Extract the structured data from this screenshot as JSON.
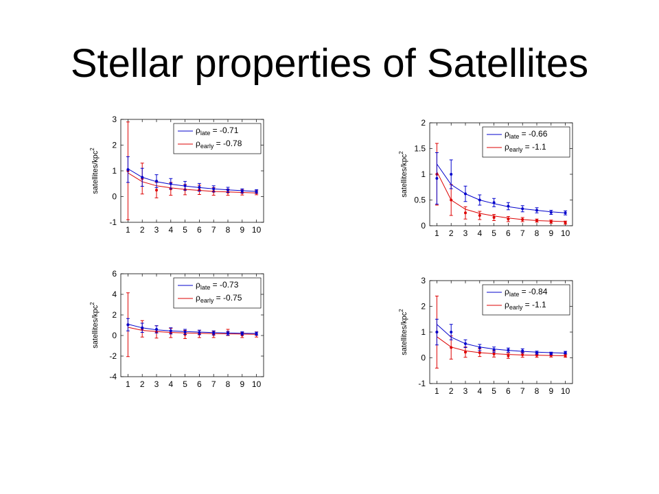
{
  "slide": {
    "title": "Stellar properties of Satellites"
  },
  "colors": {
    "late": "#0000cc",
    "early": "#dd0000",
    "axis": "#000000",
    "background": "#ffffff"
  },
  "chart_data": [
    {
      "type": "line",
      "position": "top-left",
      "xlabel": "",
      "ylabel": "satellites/kpc",
      "ylabel_superscript": "2",
      "x": [
        1,
        2,
        3,
        4,
        5,
        6,
        7,
        8,
        9,
        10
      ],
      "xticks": [
        "1",
        "2",
        "3",
        "4",
        "5",
        "6",
        "7",
        "8",
        "9",
        "10"
      ],
      "ylim": [
        -1,
        3
      ],
      "yticks": [
        "-1",
        "0",
        "1",
        "2",
        "3"
      ],
      "legend_placement": "top-right",
      "series": [
        {
          "role": "late",
          "legend_prefix": "ρ",
          "legend_subscript": "late",
          "legend_value": "=  -0.71",
          "points": [
            1.05,
            0.75,
            0.6,
            0.5,
            0.42,
            0.36,
            0.3,
            0.26,
            0.22,
            0.2
          ],
          "errors": [
            0.5,
            0.35,
            0.25,
            0.2,
            0.17,
            0.15,
            0.12,
            0.1,
            0.08,
            0.07
          ],
          "fit": [
            1.08,
            0.75,
            0.58,
            0.48,
            0.41,
            0.35,
            0.3,
            0.26,
            0.23,
            0.2
          ]
        },
        {
          "role": "early",
          "legend_prefix": "ρ",
          "legend_subscript": "early",
          "legend_value": "=  -0.78",
          "points": [
            1.0,
            0.7,
            0.25,
            0.3,
            0.27,
            0.26,
            0.2,
            0.17,
            0.16,
            0.15
          ],
          "errors": [
            1.9,
            0.6,
            0.3,
            0.25,
            0.2,
            0.18,
            0.15,
            0.12,
            0.1,
            0.08
          ],
          "fit": [
            0.92,
            0.58,
            0.42,
            0.34,
            0.28,
            0.24,
            0.2,
            0.18,
            0.16,
            0.14
          ]
        }
      ]
    },
    {
      "type": "line",
      "position": "top-right",
      "xlabel": "",
      "ylabel": "satellites/kpc",
      "ylabel_superscript": "2",
      "x": [
        1,
        2,
        3,
        4,
        5,
        6,
        7,
        8,
        9,
        10
      ],
      "xticks": [
        "1",
        "2",
        "3",
        "4",
        "5",
        "6",
        "7",
        "8",
        "9",
        "10"
      ],
      "ylim": [
        0,
        2
      ],
      "yticks": [
        "0",
        "0.5",
        "1",
        "1.5",
        "2"
      ],
      "legend_placement": "top-right",
      "series": [
        {
          "role": "late",
          "legend_prefix": "ρ",
          "legend_subscript": "late",
          "legend_value": "=  -0.66",
          "points": [
            0.92,
            1.0,
            0.62,
            0.5,
            0.45,
            0.38,
            0.33,
            0.3,
            0.26,
            0.25
          ],
          "errors": [
            0.5,
            0.28,
            0.15,
            0.1,
            0.08,
            0.07,
            0.06,
            0.05,
            0.04,
            0.04
          ],
          "fit": [
            1.2,
            0.8,
            0.62,
            0.5,
            0.43,
            0.37,
            0.33,
            0.3,
            0.27,
            0.25
          ]
        },
        {
          "role": "early",
          "legend_prefix": "ρ",
          "legend_subscript": "early",
          "legend_value": "=  -1.1",
          "points": [
            1.0,
            0.5,
            0.25,
            0.2,
            0.16,
            0.13,
            0.12,
            0.1,
            0.08,
            0.06
          ],
          "errors": [
            0.6,
            0.3,
            0.12,
            0.08,
            0.06,
            0.05,
            0.04,
            0.03,
            0.03,
            0.03
          ],
          "fit": [
            1.05,
            0.5,
            0.32,
            0.24,
            0.19,
            0.15,
            0.12,
            0.1,
            0.09,
            0.08
          ]
        }
      ]
    },
    {
      "type": "line",
      "position": "bottom-left",
      "xlabel": "",
      "ylabel": "satellites/kpc",
      "ylabel_superscript": "2",
      "x": [
        1,
        2,
        3,
        4,
        5,
        6,
        7,
        8,
        9,
        10
      ],
      "xticks": [
        "1",
        "2",
        "3",
        "4",
        "5",
        "6",
        "7",
        "8",
        "9",
        "10"
      ],
      "ylim": [
        -4,
        6
      ],
      "yticks": [
        "-4",
        "-2",
        "0",
        "2",
        "4",
        "6"
      ],
      "legend_placement": "top-right",
      "series": [
        {
          "role": "late",
          "legend_prefix": "ρ",
          "legend_subscript": "late",
          "legend_value": "=  -0.73",
          "points": [
            1.05,
            0.75,
            0.6,
            0.45,
            0.35,
            0.3,
            0.25,
            0.22,
            0.2,
            0.18
          ],
          "errors": [
            0.6,
            0.45,
            0.35,
            0.3,
            0.25,
            0.22,
            0.2,
            0.18,
            0.16,
            0.15
          ],
          "fit": [
            1.1,
            0.75,
            0.55,
            0.45,
            0.38,
            0.33,
            0.29,
            0.25,
            0.22,
            0.2
          ]
        },
        {
          "role": "early",
          "legend_prefix": "ρ",
          "legend_subscript": "early",
          "legend_value": "=  -0.75",
          "points": [
            1.05,
            0.65,
            0.35,
            0.25,
            0.1,
            0.15,
            0.1,
            0.3,
            0.05,
            0.1
          ],
          "errors": [
            3.1,
            0.8,
            0.6,
            0.45,
            0.4,
            0.35,
            0.3,
            0.3,
            0.25,
            0.25
          ],
          "fit": [
            0.8,
            0.5,
            0.38,
            0.3,
            0.25,
            0.21,
            0.18,
            0.16,
            0.14,
            0.12
          ]
        }
      ]
    },
    {
      "type": "line",
      "position": "bottom-right",
      "xlabel": "",
      "ylabel": "satellites/kpc",
      "ylabel_superscript": "2",
      "x": [
        1,
        2,
        3,
        4,
        5,
        6,
        7,
        8,
        9,
        10
      ],
      "xticks": [
        "1",
        "2",
        "3",
        "4",
        "5",
        "6",
        "7",
        "8",
        "9",
        "10"
      ],
      "ylim": [
        -1,
        3
      ],
      "yticks": [
        "-1",
        "0",
        "1",
        "2",
        "3"
      ],
      "legend_placement": "top-right",
      "series": [
        {
          "role": "late",
          "legend_prefix": "ρ",
          "legend_subscript": "late",
          "legend_value": "=  -0.84",
          "points": [
            1.0,
            1.0,
            0.55,
            0.4,
            0.32,
            0.3,
            0.27,
            0.2,
            0.17,
            0.2
          ],
          "errors": [
            0.5,
            0.3,
            0.15,
            0.12,
            0.1,
            0.08,
            0.08,
            0.06,
            0.05,
            0.05
          ],
          "fit": [
            1.3,
            0.8,
            0.55,
            0.42,
            0.34,
            0.29,
            0.25,
            0.22,
            0.2,
            0.18
          ]
        },
        {
          "role": "early",
          "legend_prefix": "ρ",
          "legend_subscript": "early",
          "legend_value": "=  -1.1",
          "points": [
            1.0,
            0.4,
            0.22,
            0.2,
            0.15,
            0.08,
            0.12,
            0.1,
            0.1,
            0.08
          ],
          "errors": [
            1.4,
            0.45,
            0.2,
            0.15,
            0.12,
            0.1,
            0.1,
            0.08,
            0.07,
            0.06
          ],
          "fit": [
            0.82,
            0.42,
            0.27,
            0.2,
            0.16,
            0.13,
            0.11,
            0.1,
            0.09,
            0.08
          ]
        }
      ]
    }
  ]
}
